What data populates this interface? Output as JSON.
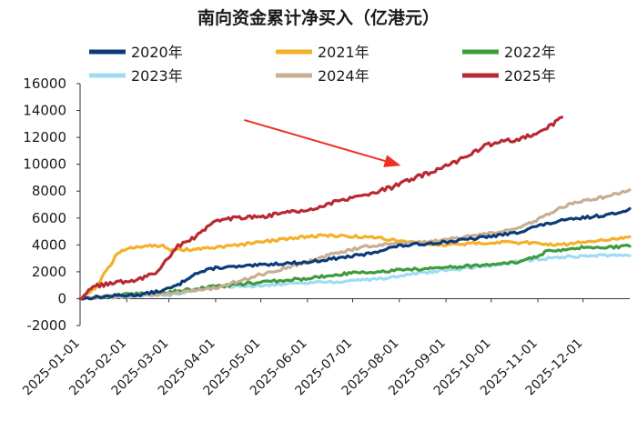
{
  "chart_data": {
    "type": "line",
    "title": "南向资金累计净买入（亿港元）",
    "xlabel": "",
    "ylabel": "",
    "ylim": [
      -2000,
      16000
    ],
    "yticks": [
      -2000,
      0,
      2000,
      4000,
      6000,
      8000,
      10000,
      12000,
      14000,
      16000
    ],
    "xlim": [
      0,
      365
    ],
    "xticks": [
      {
        "label": "2025-01-01",
        "day": 0
      },
      {
        "label": "2025-02-01",
        "day": 31
      },
      {
        "label": "2025-03-01",
        "day": 59
      },
      {
        "label": "2025-04-01",
        "day": 90
      },
      {
        "label": "2025-05-01",
        "day": 120
      },
      {
        "label": "2025-06-01",
        "day": 151
      },
      {
        "label": "2025-07-01",
        "day": 181
      },
      {
        "label": "2025-08-01",
        "day": 212
      },
      {
        "label": "2025-09-01",
        "day": 243
      },
      {
        "label": "2025-10-01",
        "day": 273
      },
      {
        "label": "2025-11-01",
        "day": 304
      },
      {
        "label": "2025-12-01",
        "day": 334
      }
    ],
    "legend": "top",
    "series": [
      {
        "name": "2020年",
        "color": "#0d3b78",
        "x": [
          0,
          20,
          40,
          55,
          65,
          75,
          90,
          110,
          130,
          150,
          170,
          190,
          210,
          230,
          250,
          270,
          290,
          300,
          320,
          340,
          355,
          365
        ],
        "y": [
          0,
          200,
          300,
          600,
          1000,
          1800,
          2300,
          2400,
          2600,
          2700,
          3000,
          3300,
          3900,
          4100,
          4300,
          4600,
          4900,
          5300,
          5800,
          6100,
          6300,
          6700
        ]
      },
      {
        "name": "2021年",
        "color": "#f5b02a",
        "x": [
          0,
          10,
          20,
          25,
          35,
          45,
          55,
          60,
          80,
          100,
          120,
          140,
          160,
          180,
          200,
          220,
          240,
          260,
          280,
          300,
          320,
          340,
          365
        ],
        "y": [
          0,
          800,
          2500,
          3400,
          3800,
          4000,
          3900,
          3600,
          3700,
          3900,
          4200,
          4500,
          4700,
          4650,
          4500,
          4200,
          4000,
          4100,
          4200,
          4150,
          4000,
          4300,
          4600
        ]
      },
      {
        "name": "2022年",
        "color": "#3e9c3c",
        "x": [
          0,
          30,
          60,
          90,
          120,
          150,
          180,
          210,
          240,
          270,
          290,
          300,
          310,
          330,
          350,
          365
        ],
        "y": [
          0,
          300,
          500,
          900,
          1200,
          1500,
          1900,
          2100,
          2300,
          2500,
          2700,
          3000,
          3500,
          3800,
          3800,
          3900
        ]
      },
      {
        "name": "2023年",
        "color": "#9fdcf3",
        "x": [
          0,
          20,
          40,
          60,
          80,
          100,
          120,
          150,
          180,
          200,
          220,
          240,
          260,
          280,
          300,
          320,
          340,
          365
        ],
        "y": [
          0,
          100,
          200,
          300,
          700,
          900,
          1000,
          1200,
          1300,
          1500,
          1800,
          2100,
          2300,
          2600,
          2900,
          3100,
          3200,
          3200
        ]
      },
      {
        "name": "2024年",
        "color": "#c8ae94",
        "x": [
          0,
          30,
          60,
          90,
          120,
          150,
          170,
          190,
          210,
          230,
          250,
          270,
          290,
          300,
          310,
          320,
          330,
          340,
          350,
          365
        ],
        "y": [
          0,
          200,
          400,
          800,
          1800,
          2700,
          3400,
          3900,
          4100,
          4200,
          4500,
          4800,
          5200,
          5700,
          6200,
          6800,
          7200,
          7400,
          7600,
          8100
        ]
      },
      {
        "name": "2025年",
        "color": "#b82a32",
        "x": [
          0,
          10,
          20,
          30,
          40,
          50,
          55,
          60,
          65,
          70,
          80,
          90,
          100,
          110,
          120,
          130,
          150,
          170,
          190,
          210,
          220,
          230,
          240,
          250,
          260,
          270,
          280,
          290,
          300,
          310,
          320
        ],
        "y": [
          0,
          900,
          1100,
          1300,
          1500,
          1900,
          2600,
          3300,
          3900,
          4200,
          4800,
          5900,
          6000,
          6100,
          6100,
          6300,
          6600,
          7200,
          7700,
          8400,
          8900,
          9300,
          9700,
          10200,
          10800,
          11400,
          11700,
          11800,
          12200,
          12700,
          13500
        ]
      }
    ],
    "annotations": [
      {
        "type": "arrow",
        "color": "#ee3125",
        "from": [
          109,
          13300
        ],
        "to": [
          213,
          9900
        ]
      }
    ]
  }
}
